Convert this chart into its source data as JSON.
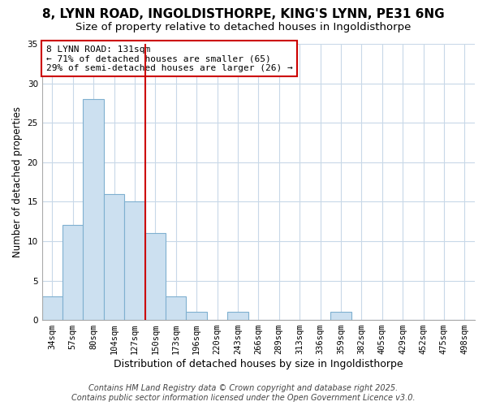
{
  "title": "8, LYNN ROAD, INGOLDISTHORPE, KING'S LYNN, PE31 6NG",
  "subtitle": "Size of property relative to detached houses in Ingoldisthorpe",
  "xlabel": "Distribution of detached houses by size in Ingoldisthorpe",
  "ylabel": "Number of detached properties",
  "categories": [
    "34sqm",
    "57sqm",
    "80sqm",
    "104sqm",
    "127sqm",
    "150sqm",
    "173sqm",
    "196sqm",
    "220sqm",
    "243sqm",
    "266sqm",
    "289sqm",
    "313sqm",
    "336sqm",
    "359sqm",
    "382sqm",
    "405sqm",
    "429sqm",
    "452sqm",
    "475sqm",
    "498sqm"
  ],
  "values": [
    3,
    12,
    28,
    16,
    15,
    11,
    3,
    1,
    0,
    1,
    0,
    0,
    0,
    0,
    1,
    0,
    0,
    0,
    0,
    0,
    0
  ],
  "bar_color": "#cce0f0",
  "bar_edgecolor": "#7fb0d0",
  "bar_linewidth": 0.8,
  "vline_x_index": 4,
  "vline_color": "#cc0000",
  "annotation_line1": "8 LYNN ROAD: 131sqm",
  "annotation_line2": "← 71% of detached houses are smaller (65)",
  "annotation_line3": "29% of semi-detached houses are larger (26) →",
  "annotation_box_edgecolor": "#cc0000",
  "annotation_box_facecolor": "#ffffff",
  "ylim": [
    0,
    35
  ],
  "yticks": [
    0,
    5,
    10,
    15,
    20,
    25,
    30,
    35
  ],
  "grid_color": "#c8d8e8",
  "background_color": "#ffffff",
  "plot_bg_color": "#ffffff",
  "footnote": "Contains HM Land Registry data © Crown copyright and database right 2025.\nContains public sector information licensed under the Open Government Licence v3.0.",
  "title_fontsize": 11,
  "subtitle_fontsize": 9.5,
  "xlabel_fontsize": 9,
  "ylabel_fontsize": 8.5,
  "tick_fontsize": 7.5,
  "annotation_fontsize": 8,
  "footnote_fontsize": 7
}
